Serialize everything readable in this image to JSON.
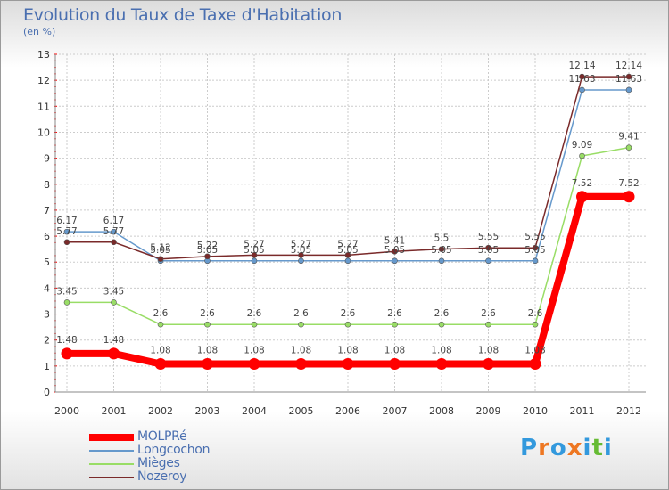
{
  "chart_data": {
    "type": "line",
    "title": "Evolution du Taux de Taxe d'Habitation",
    "subtitle": "(en %)",
    "x": [
      "2000",
      "2001",
      "2002",
      "2003",
      "2004",
      "2005",
      "2006",
      "2007",
      "2008",
      "2009",
      "2010",
      "2011",
      "2012"
    ],
    "ylim": [
      0,
      13
    ],
    "yticks": [
      "0",
      "1",
      "2",
      "3",
      "4",
      "5",
      "6",
      "7",
      "8",
      "9",
      "10",
      "11",
      "12",
      "13"
    ],
    "grid": true,
    "legend_position": "bottom-left",
    "series": [
      {
        "name": "MOLPRé",
        "color": "#ff0000",
        "values": [
          1.48,
          1.48,
          1.08,
          1.08,
          1.08,
          1.08,
          1.08,
          1.08,
          1.08,
          1.08,
          1.08,
          7.52,
          7.52
        ],
        "labels": [
          "1.48",
          "1.48",
          "1.08",
          "1.08",
          "1.08",
          "1.08",
          "1.08",
          "1.08",
          "1.08",
          "1.08",
          "1.08",
          "7.52",
          "7.52"
        ]
      },
      {
        "name": "Longcochon",
        "color": "#6699cc",
        "values": [
          6.17,
          6.17,
          5.05,
          5.05,
          5.05,
          5.05,
          5.05,
          5.05,
          5.05,
          5.05,
          5.05,
          11.63,
          11.63
        ],
        "labels": [
          "6.17",
          "6.17",
          "5.05",
          "5.05",
          "5.05",
          "5.05",
          "5.05",
          "5.05",
          "5.05",
          "5.05",
          "5.05",
          "11.63",
          "11.63"
        ]
      },
      {
        "name": "Mièges",
        "color": "#99dd66",
        "values": [
          3.45,
          3.45,
          2.6,
          2.6,
          2.6,
          2.6,
          2.6,
          2.6,
          2.6,
          2.6,
          2.6,
          9.09,
          9.41
        ],
        "labels": [
          "3.45",
          "3.45",
          "2.6",
          "2.6",
          "2.6",
          "2.6",
          "2.6",
          "2.6",
          "2.6",
          "2.6",
          "2.6",
          "9.09",
          "9.41"
        ]
      },
      {
        "name": "Nozeroy",
        "color": "#7a2a2a",
        "values": [
          5.77,
          5.77,
          5.12,
          5.22,
          5.27,
          5.27,
          5.27,
          5.41,
          5.5,
          5.55,
          5.55,
          12.14,
          12.14
        ],
        "labels": [
          "5.77",
          "5.77",
          "5.12",
          "5.22",
          "5.27",
          "5.27",
          "5.27",
          "5.41",
          "5.5",
          "5.55",
          "5.55",
          "12.14",
          "12.14"
        ]
      }
    ]
  },
  "logo": {
    "text": "Proxiti",
    "colors": [
      "#3399dd",
      "#ee7722",
      "#3399dd",
      "#ee7722",
      "#3399dd",
      "#66bb33",
      "#3399dd"
    ]
  }
}
